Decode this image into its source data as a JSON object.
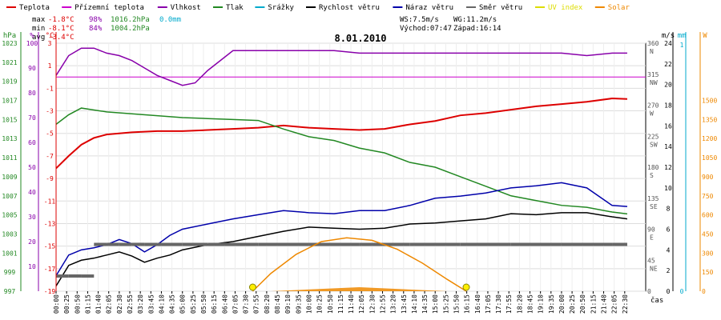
{
  "legend": [
    {
      "label": "Teplota",
      "color": "#dd0000"
    },
    {
      "label": "Přízemní teplota",
      "color": "#cc00cc"
    },
    {
      "label": "Vlhkost",
      "color": "#8800aa"
    },
    {
      "label": "Tlak",
      "color": "#228822"
    },
    {
      "label": "Srážky",
      "color": "#00aacc"
    },
    {
      "label": "Rychlost větru",
      "color": "#000000"
    },
    {
      "label": "Náraz větru",
      "color": "#0000aa"
    },
    {
      "label": "Směr větru",
      "color": "#666666"
    },
    {
      "label": "UV index",
      "color": "#dddd00"
    },
    {
      "label": "Solar",
      "color": "#ee8800"
    }
  ],
  "stats": {
    "max_label": "max",
    "min_label": "min",
    "avg_label": "avg",
    "max_temp": "-1.8°C",
    "max_hum": "98%",
    "max_press": "1016.2hPa",
    "max_rain": "0.0mm",
    "min_temp": "-8.1°C",
    "min_hum": "84%",
    "min_press": "1004.2hPa",
    "avg_temp": "-3.4°C",
    "ws": "WS:7.5m/s",
    "wg": "WG:11.2m/s",
    "sunrise": "Východ:07:47",
    "sunset": "Západ:16:14"
  },
  "chart_data": {
    "type": "line",
    "title": "8.01.2010",
    "xlabel": "čas",
    "x_ticks": [
      "00:00",
      "00:25",
      "00:50",
      "01:15",
      "01:40",
      "02:05",
      "02:30",
      "02:55",
      "03:20",
      "03:45",
      "04:10",
      "04:35",
      "05:00",
      "05:25",
      "05:50",
      "06:15",
      "06:40",
      "07:05",
      "07:30",
      "07:55",
      "08:20",
      "08:45",
      "09:10",
      "09:35",
      "10:00",
      "10:25",
      "10:50",
      "11:15",
      "11:40",
      "12:05",
      "12:30",
      "12:55",
      "13:20",
      "13:45",
      "14:10",
      "14:35",
      "15:00",
      "15:25",
      "15:50",
      "16:15",
      "16:40",
      "17:05",
      "17:30",
      "17:55",
      "18:20",
      "18:45",
      "19:10",
      "19:35",
      "20:00",
      "20:25",
      "20:50",
      "21:15",
      "21:40",
      "22:05",
      "22:30"
    ],
    "axes": {
      "pressure": {
        "unit": "hPa",
        "color": "#228822",
        "min": 997,
        "max": 1023,
        "ticks": [
          997,
          999,
          1001,
          1003,
          1005,
          1007,
          1009,
          1011,
          1013,
          1015,
          1017,
          1019,
          1021,
          1023
        ]
      },
      "humidity": {
        "unit": "%",
        "color": "#8800aa",
        "min": 0,
        "max": 100,
        "ticks": [
          10,
          20,
          30,
          40,
          50,
          60,
          70,
          80,
          90,
          100
        ]
      },
      "temperature": {
        "unit": "°C",
        "color": "#dd0000",
        "min": -19,
        "max": 3,
        "ticks": [
          -19,
          -17,
          -15,
          -13,
          -11,
          -9,
          -7,
          -5,
          -3,
          -1,
          1,
          3
        ]
      },
      "wind_dir": {
        "ticks": [
          {
            "value": 0,
            "label": "0"
          },
          {
            "value": 45,
            "label": "45",
            "sub": "NE"
          },
          {
            "value": 90,
            "label": "90",
            "sub": "E"
          },
          {
            "value": 135,
            "label": "135",
            "sub": "SE"
          },
          {
            "value": 180,
            "label": "180",
            "sub": "S"
          },
          {
            "value": 225,
            "label": "225",
            "sub": "SW"
          },
          {
            "value": 270,
            "label": "270",
            "sub": "W"
          },
          {
            "value": 315,
            "label": "315",
            "sub": "NW"
          },
          {
            "value": 360,
            "label": "360",
            "sub": "N"
          }
        ],
        "min": 0,
        "max": 360
      },
      "wind_speed": {
        "unit": "m/s",
        "color": "#000000",
        "min": 0,
        "max": 24,
        "ticks": [
          0,
          2,
          4,
          6,
          8,
          10,
          12,
          14,
          16,
          18,
          20,
          22,
          24
        ]
      },
      "rain": {
        "unit": "mm",
        "color": "#00aacc",
        "min": 0,
        "max": 1,
        "ticks": [
          0,
          1
        ]
      },
      "solar": {
        "unit": "W",
        "color": "#ee8800",
        "min": 0,
        "max": 1950,
        "ticks": [
          0,
          150,
          300,
          450,
          600,
          750,
          900,
          1050,
          1200,
          1350,
          1500
        ]
      }
    },
    "series": [
      {
        "name": "Teplota",
        "axis": "temperature",
        "color": "#dd0000",
        "x": [
          0,
          0.5,
          1,
          1.5,
          2,
          3,
          4,
          5,
          6,
          7,
          8,
          9,
          10,
          11,
          12,
          13,
          14,
          15,
          16,
          17,
          18,
          19,
          20,
          21,
          22,
          22.6
        ],
        "y": [
          -8.1,
          -7,
          -6,
          -5.4,
          -5.1,
          -4.9,
          -4.8,
          -4.8,
          -4.7,
          -4.6,
          -4.5,
          -4.3,
          -4.5,
          -4.6,
          -4.7,
          -4.6,
          -4.2,
          -3.9,
          -3.4,
          -3.2,
          -2.9,
          -2.6,
          -2.4,
          -2.2,
          -1.9,
          -1.95
        ]
      },
      {
        "name": "Vlhkost",
        "axis": "humidity",
        "color": "#8800aa",
        "x": [
          0,
          0.5,
          1,
          1.5,
          2,
          2.5,
          3,
          3.5,
          4,
          4.5,
          5,
          5.5,
          6,
          7,
          8,
          9,
          10,
          11,
          12,
          13,
          14,
          15,
          16,
          17,
          18,
          19,
          20,
          21,
          22,
          22.6
        ],
        "y": [
          87,
          95,
          98,
          98,
          96,
          95,
          93,
          90,
          87,
          85,
          83,
          84,
          89,
          97,
          97,
          97,
          97,
          97,
          96,
          96,
          96,
          96,
          96,
          96,
          96,
          96,
          96,
          95,
          96,
          96
        ]
      },
      {
        "name": "Tlak",
        "axis": "pressure",
        "color": "#228822",
        "x": [
          0,
          0.5,
          1,
          1.5,
          2,
          3,
          4,
          5,
          6,
          7,
          8,
          9,
          10,
          11,
          12,
          13,
          14,
          15,
          16,
          17,
          18,
          19,
          20,
          21,
          22,
          22.6
        ],
        "y": [
          1014.5,
          1015.5,
          1016.2,
          1016,
          1015.8,
          1015.6,
          1015.4,
          1015.2,
          1015.1,
          1015,
          1014.9,
          1014,
          1013.2,
          1012.8,
          1012,
          1011.5,
          1010.5,
          1010,
          1009,
          1008,
          1007,
          1006.5,
          1006,
          1005.8,
          1005.3,
          1005.1
        ]
      },
      {
        "name": "Rychlost větru",
        "axis": "wind_speed",
        "color": "#000000",
        "x": [
          0,
          0.5,
          1,
          1.5,
          2,
          2.5,
          3,
          3.5,
          4,
          4.5,
          5,
          6,
          7,
          8,
          9,
          10,
          11,
          12,
          13,
          14,
          15,
          16,
          17,
          18,
          19,
          20,
          21,
          22,
          22.6
        ],
        "y": [
          0.5,
          2.5,
          3,
          3.2,
          3.5,
          3.8,
          3.4,
          2.8,
          3.2,
          3.5,
          4,
          4.5,
          4.8,
          5.3,
          5.8,
          6.2,
          6.1,
          6,
          6.1,
          6.5,
          6.6,
          6.8,
          7,
          7.5,
          7.4,
          7.6,
          7.6,
          7.2,
          7
        ]
      },
      {
        "name": "Náraz větru",
        "axis": "wind_speed",
        "color": "#0000aa",
        "x": [
          0,
          0.5,
          1,
          1.5,
          2,
          2.5,
          3,
          3.5,
          4,
          4.5,
          5,
          6,
          7,
          8,
          9,
          10,
          11,
          12,
          13,
          14,
          15,
          16,
          17,
          18,
          19,
          20,
          21,
          22,
          22.6
        ],
        "y": [
          1.5,
          3.5,
          4,
          4.2,
          4.5,
          5,
          4.6,
          3.8,
          4.5,
          5.4,
          6,
          6.5,
          7,
          7.4,
          7.8,
          7.6,
          7.5,
          7.8,
          7.8,
          8.3,
          9,
          9.2,
          9.5,
          10,
          10.2,
          10.5,
          10,
          8.3,
          8.2
        ]
      },
      {
        "name": "Směr větru",
        "axis": "wind_dir",
        "color": "#666666",
        "x": [
          0,
          0.5,
          1,
          1.5,
          2,
          2.5,
          3,
          3.5,
          4,
          5,
          6,
          8,
          10,
          12,
          14,
          16,
          18,
          20,
          22,
          22.6
        ],
        "y": [
          22,
          22,
          22,
          68,
          68,
          68,
          68,
          68,
          68,
          68,
          68,
          68,
          68,
          68,
          68,
          68,
          68,
          68,
          68,
          68
        ]
      },
      {
        "name": "Solar",
        "axis": "solar",
        "color": "#ee8800",
        "x": [
          7.78,
          8.5,
          9.5,
          10.5,
          11.5,
          12.5,
          13.5,
          14.5,
          15.5,
          16.23
        ],
        "y": [
          0,
          140,
          290,
          390,
          420,
          400,
          330,
          220,
          90,
          0
        ]
      }
    ],
    "sun_markers": [
      {
        "label": "Východ",
        "x": 7.78
      },
      {
        "label": "Západ",
        "x": 16.23
      }
    ]
  }
}
